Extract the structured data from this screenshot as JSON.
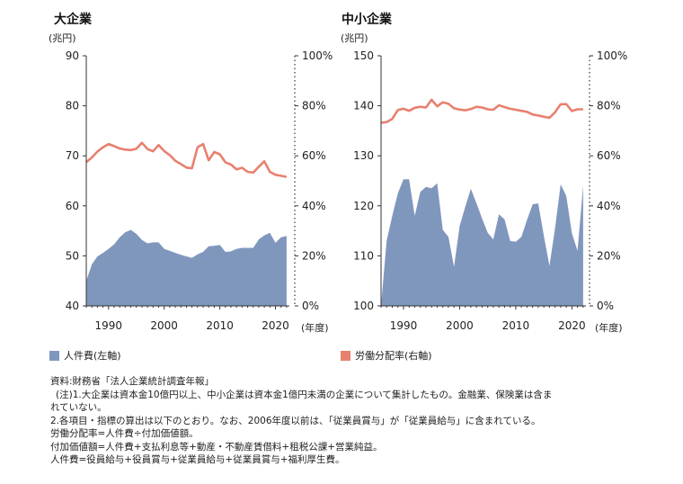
{
  "colors": {
    "area": "#8097bd",
    "line": "#e8806f",
    "axis": "#333333"
  },
  "chart_data": [
    {
      "type": "area+line",
      "title": "大企業",
      "ylabel_left": "(兆円)",
      "ylabel_right": "",
      "xlabel": "(年度)",
      "left_ylim": [
        40,
        90
      ],
      "left_ticks": [
        40,
        50,
        60,
        70,
        80,
        90
      ],
      "right_ylim": [
        0,
        100
      ],
      "right_ticks": [
        "0%",
        "20%",
        "40%",
        "60%",
        "80%",
        "100%"
      ],
      "x_ticks": [
        "1990",
        "2000",
        "2010",
        "2020"
      ],
      "xlim": [
        1986,
        2022.5
      ],
      "series": [
        {
          "name": "人件費(左軸)",
          "axis": "left",
          "kind": "area",
          "x": [
            1986,
            1987,
            1988,
            1989,
            1990,
            1991,
            1992,
            1993,
            1994,
            1995,
            1996,
            1997,
            1998,
            1999,
            2000,
            2001,
            2002,
            2003,
            2004,
            2005,
            2006,
            2007,
            2008,
            2009,
            2010,
            2011,
            2012,
            2013,
            2014,
            2015,
            2016,
            2017,
            2018,
            2019,
            2020,
            2021,
            2022
          ],
          "values": [
            45.0,
            48.3,
            49.9,
            50.6,
            51.4,
            52.3,
            53.7,
            54.7,
            55.2,
            54.4,
            53.2,
            52.5,
            52.7,
            52.7,
            51.4,
            51.0,
            50.6,
            50.2,
            49.9,
            49.6,
            50.3,
            50.8,
            51.9,
            52.0,
            52.2,
            50.8,
            50.9,
            51.4,
            51.6,
            51.6,
            51.6,
            53.3,
            54.1,
            54.6,
            52.6,
            53.7,
            54.0
          ]
        },
        {
          "name": "労働分配率(右軸)",
          "axis": "right",
          "kind": "line",
          "x": [
            1986,
            1987,
            1988,
            1989,
            1990,
            1991,
            1992,
            1993,
            1994,
            1995,
            1996,
            1997,
            1998,
            1999,
            2000,
            2001,
            2002,
            2003,
            2004,
            2005,
            2006,
            2007,
            2008,
            2009,
            2010,
            2011,
            2012,
            2013,
            2014,
            2015,
            2016,
            2017,
            2018,
            2019,
            2020,
            2021,
            2022
          ],
          "values": [
            57.5,
            59.3,
            61.7,
            63.4,
            64.7,
            63.9,
            62.9,
            62.5,
            62.3,
            62.8,
            65.2,
            62.7,
            61.8,
            64.3,
            61.9,
            60.3,
            58.0,
            56.7,
            55.3,
            55.0,
            63.4,
            64.7,
            58.2,
            61.5,
            60.6,
            57.4,
            56.5,
            54.6,
            55.2,
            53.6,
            53.3,
            55.6,
            57.8,
            53.6,
            52.4,
            52.0,
            51.6
          ]
        }
      ]
    },
    {
      "type": "area+line",
      "title": "中小企業",
      "ylabel_left": "(兆円)",
      "ylabel_right": "",
      "xlabel": "(年度)",
      "left_ylim": [
        100,
        150
      ],
      "left_ticks": [
        100,
        110,
        120,
        130,
        140,
        150
      ],
      "right_ylim": [
        0,
        100
      ],
      "right_ticks": [
        "0%",
        "20%",
        "40%",
        "60%",
        "80%",
        "100%"
      ],
      "x_ticks": [
        "1990",
        "2000",
        "2010",
        "2020"
      ],
      "xlim": [
        1986,
        2022.5
      ],
      "series": [
        {
          "name": "人件費(左軸)",
          "axis": "left",
          "kind": "area",
          "x": [
            1986,
            1987,
            1988,
            1989,
            1990,
            1991,
            1992,
            1993,
            1994,
            1995,
            1996,
            1997,
            1998,
            1999,
            2000,
            2001,
            2002,
            2003,
            2004,
            2005,
            2006,
            2007,
            2008,
            2009,
            2010,
            2011,
            2012,
            2013,
            2014,
            2015,
            2016,
            2017,
            2018,
            2019,
            2020,
            2021,
            2022
          ],
          "values": [
            99.5,
            113.0,
            118.0,
            122.5,
            125.3,
            125.3,
            118.0,
            122.8,
            123.8,
            123.5,
            124.5,
            115.2,
            113.8,
            107.8,
            116.0,
            119.8,
            123.4,
            120.5,
            117.5,
            114.6,
            113.3,
            118.3,
            117.3,
            113.0,
            112.8,
            113.8,
            117.2,
            120.3,
            120.5,
            114.0,
            108.0,
            115.5,
            124.3,
            122.0,
            114.5,
            111.0,
            124.0
          ]
        },
        {
          "name": "労働分配率(右軸)",
          "axis": "right",
          "kind": "line",
          "x": [
            1986,
            1987,
            1988,
            1989,
            1990,
            1991,
            1992,
            1993,
            1994,
            1995,
            1996,
            1997,
            1998,
            1999,
            2000,
            2001,
            2002,
            2003,
            2004,
            2005,
            2006,
            2007,
            2008,
            2009,
            2010,
            2011,
            2012,
            2013,
            2014,
            2015,
            2016,
            2017,
            2018,
            2019,
            2020,
            2021,
            2022
          ],
          "values": [
            73.2,
            73.5,
            74.8,
            78.3,
            78.8,
            78.0,
            79.2,
            79.6,
            79.3,
            82.4,
            79.8,
            81.4,
            80.8,
            79.0,
            78.5,
            78.2,
            78.7,
            79.6,
            79.3,
            78.6,
            78.4,
            80.2,
            79.5,
            78.8,
            78.4,
            78.0,
            77.6,
            76.5,
            76.1,
            75.6,
            75.2,
            77.4,
            80.6,
            80.7,
            77.9,
            78.6,
            78.6
          ]
        }
      ]
    }
  ],
  "legend": {
    "area_label": "人件費(左軸)",
    "line_label": "労働分配率(右軸)"
  },
  "notes": [
    "資料:財務省「法人企業統計調査年報」",
    "(注)1.大企業は資本金10億円以上、中小企業は資本金1億円未満の企業について集計したもの。金融業、保険業は含ま",
    "れていない。",
    "2.各項目・指標の算出は以下のとおり。なお、2006年度以前は、「従業員賞与」が「従業員給与」に含まれている。",
    "労働分配率=人件費÷付加価値額。",
    "付加価値額=人件費+支払利息等+動産・不動産賃借料+租税公課+営業純益。",
    "人件費=役員給与+役員賞与+従業員給与+従業員賞与+福利厚生費。"
  ]
}
